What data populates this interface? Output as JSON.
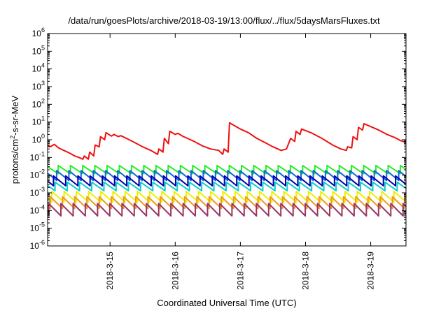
{
  "chart_data": {
    "type": "line",
    "title": "/data/run/goesPlots/archive/2018-03-19/13:00/flux/../flux/5daysMarsFluxes.txt",
    "xlabel": "Coordinated Universal Time (UTC)",
    "ylabel": {
      "prefix": "protons/cm",
      "sup": "2",
      "suffix": "-s-sr-MeV"
    },
    "y_scale": "log",
    "ylim": [
      1e-06,
      1000000.0
    ],
    "xlim": [
      "2018-03-14 01:00",
      "2018-03-19 13:00"
    ],
    "y_ticks": [
      {
        "value": 1e-06,
        "base": "10",
        "exp": "-6"
      },
      {
        "value": 1e-05,
        "base": "10",
        "exp": "-5"
      },
      {
        "value": 0.0001,
        "base": "10",
        "exp": "-4"
      },
      {
        "value": 0.001,
        "base": "10",
        "exp": "-3"
      },
      {
        "value": 0.01,
        "base": "10",
        "exp": "-2"
      },
      {
        "value": 0.1,
        "base": "10",
        "exp": "-1"
      },
      {
        "value": 1,
        "base": "10",
        "exp": "0"
      },
      {
        "value": 10.0,
        "base": "10",
        "exp": "1"
      },
      {
        "value": 100.0,
        "base": "10",
        "exp": "2"
      },
      {
        "value": 1000.0,
        "base": "10",
        "exp": "3"
      },
      {
        "value": 10000.0,
        "base": "10",
        "exp": "4"
      },
      {
        "value": 100000.0,
        "base": "10",
        "exp": "5"
      },
      {
        "value": 1000000.0,
        "base": "10",
        "exp": "6"
      }
    ],
    "x_ticks": [
      {
        "value": "2018-03-15 00:00",
        "label": "2018-3-15"
      },
      {
        "value": "2018-03-16 00:00",
        "label": "2018-3-16"
      },
      {
        "value": "2018-03-17 00:00",
        "label": "2018-3-17"
      },
      {
        "value": "2018-03-18 00:00",
        "label": "2018-3-18"
      },
      {
        "value": "2018-03-19 00:00",
        "label": "2018-3-19"
      }
    ],
    "grid": false,
    "legend": "none",
    "series": [
      {
        "color": "#ee1111",
        "points": [
          [
            "2018-03-14 01:00",
            0.5
          ],
          [
            "2018-03-14 02:00",
            0.4
          ],
          [
            "2018-03-14 03:30",
            0.55
          ],
          [
            "2018-03-14 05:00",
            0.35
          ],
          [
            "2018-03-14 07:00",
            0.25
          ],
          [
            "2018-03-14 09:00",
            0.18
          ],
          [
            "2018-03-14 11:00",
            0.12
          ],
          [
            "2018-03-14 12:30",
            0.1
          ],
          [
            "2018-03-14 14:00",
            0.08
          ],
          [
            "2018-03-14 14:30",
            0.12
          ],
          [
            "2018-03-14 16:00",
            0.08
          ],
          [
            "2018-03-14 16:30",
            0.2
          ],
          [
            "2018-03-14 18:00",
            0.12
          ],
          [
            "2018-03-14 18:30",
            0.5
          ],
          [
            "2018-03-14 20:00",
            0.4
          ],
          [
            "2018-03-14 20:30",
            1.5
          ],
          [
            "2018-03-14 22:00",
            1.0
          ],
          [
            "2018-03-14 22:30",
            2.5
          ],
          [
            "2018-03-15 00:30",
            1.6
          ],
          [
            "2018-03-15 01:30",
            2.0
          ],
          [
            "2018-03-15 03:00",
            1.5
          ],
          [
            "2018-03-15 04:00",
            1.7
          ],
          [
            "2018-03-15 06:00",
            1.2
          ],
          [
            "2018-03-15 09:00",
            0.7
          ],
          [
            "2018-03-15 12:00",
            0.4
          ],
          [
            "2018-03-15 15:00",
            0.25
          ],
          [
            "2018-03-15 17:30",
            0.15
          ],
          [
            "2018-03-15 18:00",
            0.3
          ],
          [
            "2018-03-15 19:30",
            0.2
          ],
          [
            "2018-03-15 20:00",
            1.2
          ],
          [
            "2018-03-15 21:30",
            0.6
          ],
          [
            "2018-03-15 22:00",
            3.0
          ],
          [
            "2018-03-16 00:00",
            2.0
          ],
          [
            "2018-03-16 01:00",
            2.3
          ],
          [
            "2018-03-16 03:00",
            1.5
          ],
          [
            "2018-03-16 04:00",
            1.3
          ],
          [
            "2018-03-16 07:00",
            0.8
          ],
          [
            "2018-03-16 10:00",
            0.45
          ],
          [
            "2018-03-16 13:00",
            0.3
          ],
          [
            "2018-03-16 16:00",
            0.25
          ],
          [
            "2018-03-16 17:30",
            0.15
          ],
          [
            "2018-03-16 18:00",
            0.3
          ],
          [
            "2018-03-16 19:30",
            0.2
          ],
          [
            "2018-03-16 20:00",
            9.0
          ],
          [
            "2018-03-16 22:00",
            6.0
          ],
          [
            "2018-03-17 00:00",
            4.0
          ],
          [
            "2018-03-17 03:00",
            2.5
          ],
          [
            "2018-03-17 06:00",
            1.2
          ],
          [
            "2018-03-17 09:00",
            0.7
          ],
          [
            "2018-03-17 12:00",
            0.4
          ],
          [
            "2018-03-17 15:00",
            0.25
          ],
          [
            "2018-03-17 17:00",
            0.3
          ],
          [
            "2018-03-17 18:30",
            1.2
          ],
          [
            "2018-03-17 20:00",
            0.8
          ],
          [
            "2018-03-17 20:30",
            3.0
          ],
          [
            "2018-03-17 22:00",
            2.0
          ],
          [
            "2018-03-17 22:30",
            4.0
          ],
          [
            "2018-03-18 02:00",
            2.5
          ],
          [
            "2018-03-18 06:00",
            1.2
          ],
          [
            "2018-03-18 10:00",
            0.5
          ],
          [
            "2018-03-18 13:00",
            0.3
          ],
          [
            "2018-03-18 15:00",
            0.25
          ],
          [
            "2018-03-18 15:30",
            0.4
          ],
          [
            "2018-03-18 17:00",
            0.35
          ],
          [
            "2018-03-18 17:30",
            1.5
          ],
          [
            "2018-03-18 19:00",
            1.0
          ],
          [
            "2018-03-18 19:30",
            5.0
          ],
          [
            "2018-03-18 21:00",
            3.5
          ],
          [
            "2018-03-18 21:30",
            8.0
          ],
          [
            "2018-03-19 00:00",
            5.5
          ],
          [
            "2018-03-19 03:00",
            3.5
          ],
          [
            "2018-03-19 06:00",
            2.0
          ],
          [
            "2018-03-19 09:00",
            1.3
          ],
          [
            "2018-03-19 11:00",
            0.9
          ],
          [
            "2018-03-19 13:00",
            0.7
          ]
        ]
      },
      {
        "color": "#22ee22",
        "sawtooth": {
          "base": 0.012,
          "peak": 0.035
        }
      },
      {
        "color": "#1166dd",
        "sawtooth": {
          "base": 0.005,
          "peak": 0.018
        }
      },
      {
        "color": "#11cccc",
        "sawtooth": {
          "base": 0.0013,
          "peak": 0.004
        }
      },
      {
        "color": "#0000aa",
        "sawtooth": {
          "base": 0.0025,
          "peak": 0.009
        }
      },
      {
        "color": "#eeee00",
        "sawtooth": {
          "base": 0.0003,
          "peak": 0.0012
        }
      },
      {
        "color": "#ee9922",
        "sawtooth": {
          "base": 0.00013,
          "peak": 0.0006
        }
      },
      {
        "color": "#993366",
        "sawtooth": {
          "base": 5e-05,
          "peak": 0.00025
        }
      }
    ],
    "sawtooth_period_hours": 4.5
  }
}
